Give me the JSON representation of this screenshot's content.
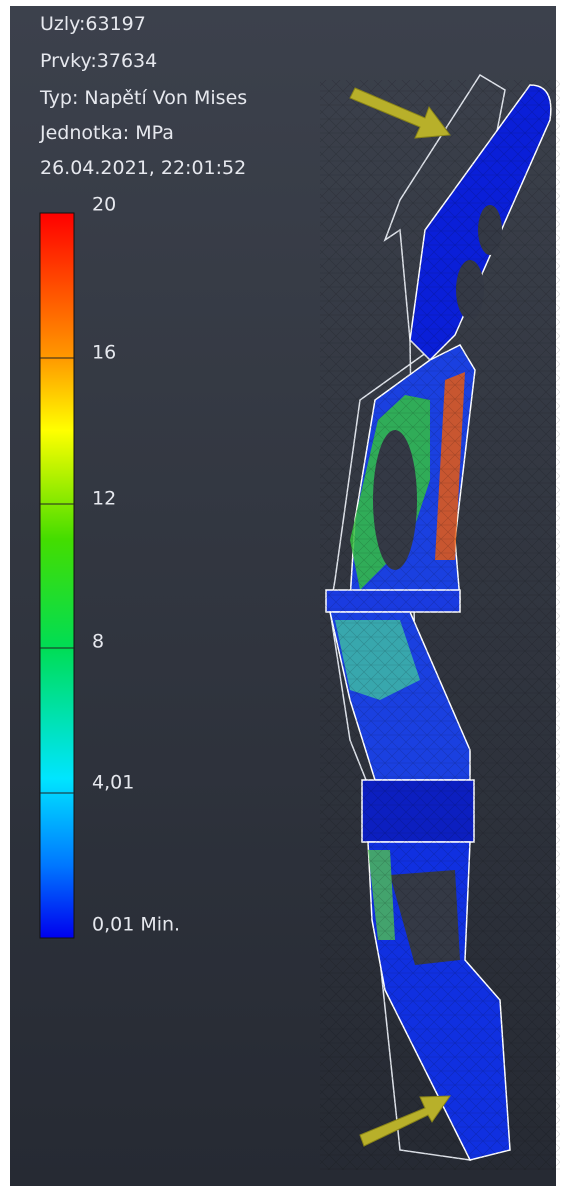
{
  "info": {
    "lines": [
      "Uzly:63197",
      "Prvky:37634",
      "Typ: Napětí Von Mises",
      "Jednotka: MPa",
      "26.04.2021, 22:01:52"
    ]
  },
  "legend": {
    "labels": [
      "20",
      "16",
      "12",
      "8",
      "4,01",
      "0,01 Min."
    ]
  }
}
